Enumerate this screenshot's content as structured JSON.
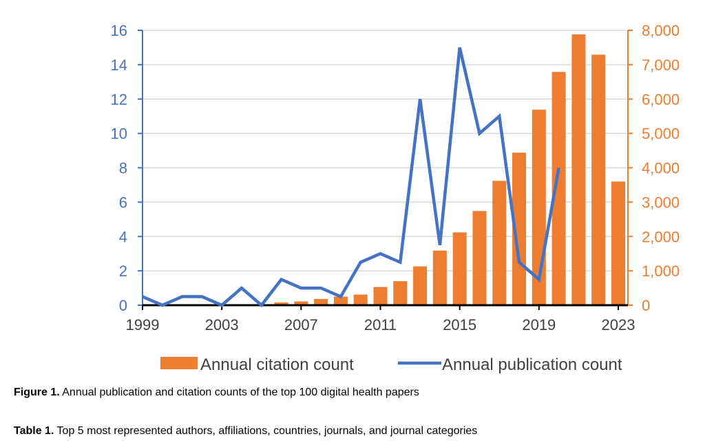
{
  "chart_data": {
    "type": "bar+line",
    "title": "",
    "x": [
      1999,
      2000,
      2001,
      2002,
      2003,
      2004,
      2005,
      2006,
      2007,
      2008,
      2009,
      2010,
      2011,
      2012,
      2013,
      2014,
      2015,
      2016,
      2017,
      2018,
      2019,
      2020,
      2021,
      2022,
      2023
    ],
    "x_tick_labels": [
      "1999",
      "2003",
      "2007",
      "2011",
      "2015",
      "2019",
      "2023"
    ],
    "series": [
      {
        "name": "Annual citation count",
        "type": "bar",
        "axis": "right",
        "values": [
          0,
          0,
          0,
          0,
          0,
          0,
          0,
          80,
          110,
          180,
          250,
          310,
          530,
          700,
          1130,
          1590,
          2120,
          2740,
          3620,
          4440,
          5690,
          6790,
          7880,
          7290,
          3600
        ]
      },
      {
        "name": "Annual publication count",
        "type": "line",
        "axis": "left",
        "values": [
          0.5,
          0,
          0.5,
          0.5,
          0,
          1,
          0,
          1.5,
          1,
          1,
          0.5,
          2.5,
          3,
          2.5,
          12,
          3.5,
          15,
          10,
          11,
          2.5,
          1.5,
          8,
          null,
          null,
          null
        ]
      }
    ],
    "y_left": {
      "range": [
        0,
        16
      ],
      "ticks": [
        "0",
        "2",
        "4",
        "6",
        "8",
        "10",
        "12",
        "14",
        "16"
      ]
    },
    "y_right": {
      "range": [
        0,
        8000
      ],
      "ticks": [
        "0",
        "1,000",
        "2,000",
        "3,000",
        "4,000",
        "5,000",
        "6,000",
        "7,000",
        "8,000"
      ]
    },
    "grid": true,
    "legend_placement": "bottom",
    "colors": {
      "bar": "#ED7D31",
      "line": "#4472C4",
      "left_axis": "#4472C4",
      "right_axis": "#ED7D31"
    }
  },
  "captions": {
    "figure_label": "Figure 1.",
    "figure_text": " Annual publication and citation counts of the top 100 digital health papers",
    "table_label": "Table 1.",
    "table_text": " Top 5 most represented authors, affiliations, countries, journals, and journal categories"
  }
}
